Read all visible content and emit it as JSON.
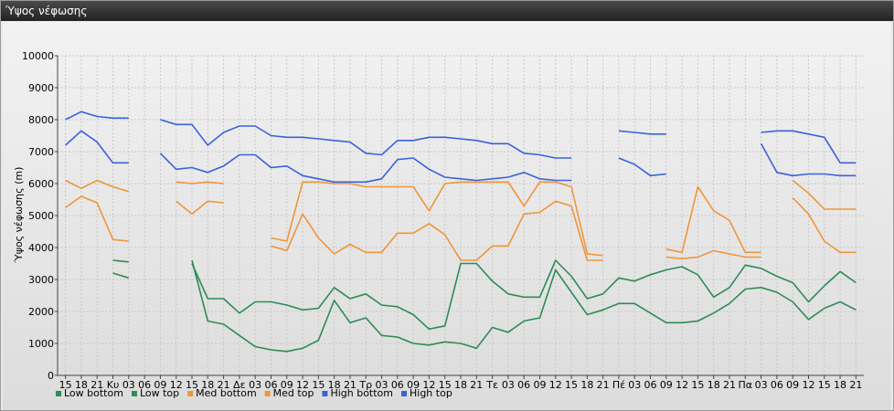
{
  "window": {
    "title": "Ύψος νέφωσης"
  },
  "chart_data": {
    "type": "line",
    "title": "",
    "ylabel": "Ύψος νέφωσης (m)",
    "xlabel": "",
    "ylim": [
      0,
      10000
    ],
    "yticks": [
      0,
      1000,
      2000,
      3000,
      4000,
      5000,
      6000,
      7000,
      8000,
      9000,
      10000
    ],
    "grid": true,
    "legend_position": "bottom-left",
    "categories": [
      "15",
      "18",
      "21",
      "Κυ",
      "03",
      "06",
      "09",
      "12",
      "15",
      "18",
      "21",
      "Δε",
      "03",
      "06",
      "09",
      "12",
      "15",
      "18",
      "21",
      "Τρ",
      "03",
      "06",
      "09",
      "12",
      "15",
      "18",
      "21",
      "Τε",
      "03",
      "06",
      "09",
      "12",
      "15",
      "18",
      "21",
      "Πέ",
      "03",
      "06",
      "09",
      "12",
      "15",
      "18",
      "21",
      "Πα",
      "03",
      "06",
      "09",
      "12",
      "15",
      "18",
      "21"
    ],
    "series": [
      {
        "name": "Low bottom",
        "color": "#2e8b57",
        "values": [
          null,
          null,
          null,
          3200,
          3050,
          null,
          null,
          null,
          3600,
          1700,
          1600,
          1250,
          900,
          800,
          750,
          850,
          1100,
          2350,
          1650,
          1800,
          1250,
          1200,
          1000,
          950,
          1050,
          1000,
          850,
          1500,
          1350,
          1700,
          1800,
          3300,
          2600,
          1900,
          2050,
          2250,
          2250,
          1950,
          1650,
          1650,
          1700,
          1950,
          2250,
          2700,
          2750,
          2600,
          2300,
          1750,
          2100,
          2300,
          2050
        ]
      },
      {
        "name": "Low top",
        "color": "#2e8b57",
        "values": [
          null,
          null,
          null,
          3600,
          3550,
          null,
          null,
          null,
          3500,
          2400,
          2400,
          1950,
          2300,
          2300,
          2200,
          2050,
          2100,
          2750,
          2400,
          2550,
          2200,
          2150,
          1900,
          1450,
          1550,
          3500,
          3500,
          2950,
          2550,
          2450,
          2450,
          3600,
          3100,
          2400,
          2550,
          3050,
          2950,
          3150,
          3300,
          3400,
          3150,
          2450,
          2750,
          3450,
          3350,
          3100,
          2900,
          2300,
          2800,
          3250,
          2900
        ]
      },
      {
        "name": "Med bottom",
        "color": "#f0953a",
        "values": [
          5250,
          5600,
          5400,
          4250,
          4200,
          null,
          null,
          5450,
          5050,
          5450,
          5400,
          null,
          null,
          4050,
          3900,
          5050,
          4300,
          3800,
          4100,
          3850,
          3850,
          4450,
          4450,
          4750,
          4400,
          3600,
          3600,
          4050,
          4050,
          5050,
          5100,
          5450,
          5300,
          3600,
          3600,
          null,
          null,
          null,
          3700,
          3650,
          3700,
          3900,
          3800,
          3700,
          3700,
          null,
          5550,
          5050,
          4200,
          3850,
          3850
        ]
      },
      {
        "name": "Med top",
        "color": "#f0953a",
        "values": [
          6100,
          5850,
          6100,
          5900,
          5750,
          null,
          null,
          6050,
          6000,
          6050,
          6000,
          null,
          null,
          4300,
          4200,
          6050,
          6050,
          6000,
          6000,
          5900,
          5900,
          5900,
          5900,
          5150,
          6000,
          6050,
          6050,
          6050,
          6050,
          5300,
          6050,
          6050,
          5900,
          3800,
          3750,
          null,
          null,
          null,
          3950,
          3850,
          5900,
          5150,
          4850,
          3850,
          3850,
          null,
          6100,
          5700,
          5200,
          5200,
          5200
        ]
      },
      {
        "name": "High bottom",
        "color": "#3a62d8",
        "values": [
          7200,
          7650,
          7300,
          6650,
          6650,
          null,
          6950,
          6450,
          6500,
          6350,
          6550,
          6900,
          6900,
          6500,
          6550,
          6250,
          6150,
          6050,
          6050,
          6050,
          6150,
          6750,
          6800,
          6450,
          6200,
          6150,
          6100,
          6150,
          6200,
          6350,
          6150,
          6100,
          6100,
          null,
          null,
          6800,
          6600,
          6250,
          6300,
          null,
          null,
          null,
          null,
          null,
          7250,
          6350,
          6250,
          6300,
          6300,
          6250,
          6250
        ]
      },
      {
        "name": "High top",
        "color": "#3a62d8",
        "values": [
          8000,
          8250,
          8100,
          8050,
          8050,
          null,
          8000,
          7850,
          7850,
          7200,
          7600,
          7800,
          7800,
          7500,
          7450,
          7450,
          7400,
          7350,
          7300,
          6950,
          6900,
          7350,
          7350,
          7450,
          7450,
          7400,
          7350,
          7250,
          7250,
          6950,
          6900,
          6800,
          6800,
          null,
          null,
          7650,
          7600,
          7550,
          7550,
          null,
          null,
          null,
          null,
          null,
          7600,
          7650,
          7650,
          7550,
          7450,
          6650,
          6650
        ]
      }
    ]
  }
}
